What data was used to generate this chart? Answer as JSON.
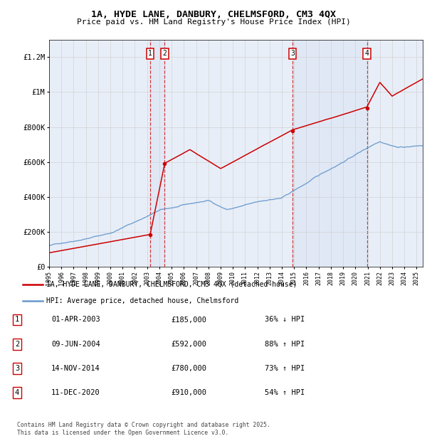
{
  "title": "1A, HYDE LANE, DANBURY, CHELMSFORD, CM3 4QX",
  "subtitle": "Price paid vs. HM Land Registry's House Price Index (HPI)",
  "footer": "Contains HM Land Registry data © Crown copyright and database right 2025.\nThis data is licensed under the Open Government Licence v3.0.",
  "legend_red": "1A, HYDE LANE, DANBURY, CHELMSFORD, CM3 4QX (detached house)",
  "legend_blue": "HPI: Average price, detached house, Chelmsford",
  "transactions": [
    {
      "num": 1,
      "date": "01-APR-2003",
      "price": 185000,
      "pct": "36%",
      "dir": "↓",
      "year": 2003.25
    },
    {
      "num": 2,
      "date": "09-JUN-2004",
      "price": 592000,
      "pct": "88%",
      "dir": "↑",
      "year": 2004.44
    },
    {
      "num": 3,
      "date": "14-NOV-2014",
      "price": 780000,
      "pct": "73%",
      "dir": "↑",
      "year": 2014.87
    },
    {
      "num": 4,
      "date": "11-DEC-2020",
      "price": 910000,
      "pct": "54%",
      "dir": "↑",
      "year": 2020.95
    }
  ],
  "red_color": "#cc0000",
  "blue_color": "#6699cc",
  "background_color": "#e8eef8",
  "ylim": [
    0,
    1300000
  ],
  "xlim_start": 1995,
  "xlim_end": 2025.5,
  "yticks": [
    0,
    200000,
    400000,
    600000,
    800000,
    1000000,
    1200000
  ],
  "ytick_labels": [
    "£0",
    "£200K",
    "£400K",
    "£600K",
    "£800K",
    "£1M",
    "£1.2M"
  ]
}
